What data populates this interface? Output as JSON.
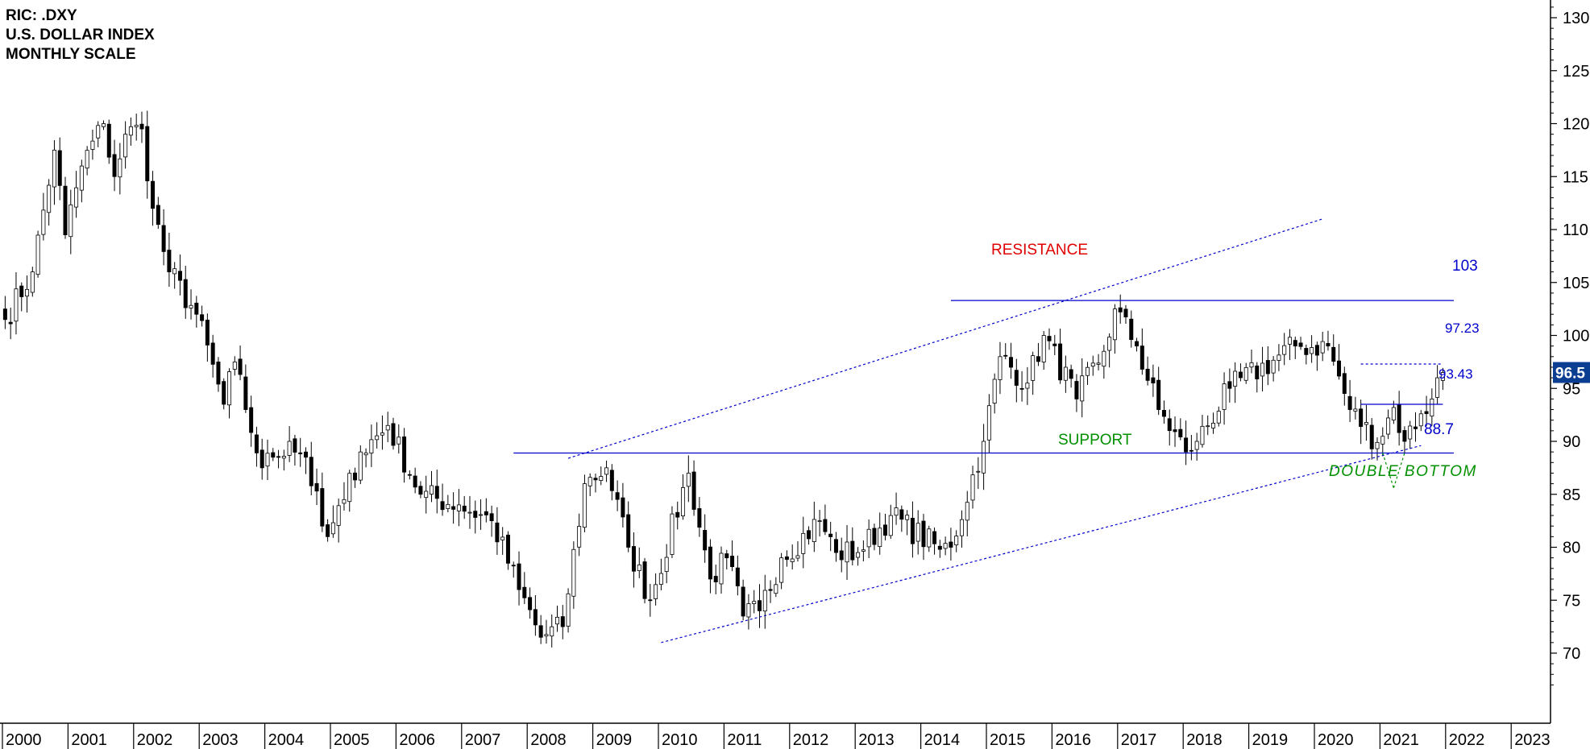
{
  "header": {
    "line1": "RIC: .DXY",
    "line2": "U.S. DOLLAR INDEX",
    "line3": "MONTHLY SCALE"
  },
  "chart_data": {
    "type": "candlestick",
    "frequency": "monthly",
    "ylim": [
      66,
      132
    ],
    "y_ticks": [
      70,
      75,
      80,
      85,
      90,
      95,
      100,
      105,
      110,
      115,
      120,
      125,
      130
    ],
    "x_ticks": [
      "2000",
      "2001",
      "2002",
      "2003",
      "2004",
      "2005",
      "2006",
      "2007",
      "2008",
      "2009",
      "2010",
      "2011",
      "2012",
      "2013",
      "2014",
      "2015",
      "2016",
      "2017",
      "2018",
      "2019",
      "2020",
      "2021",
      "2022",
      "2023"
    ],
    "x_range": [
      "2000-01",
      "2023-06"
    ],
    "last_price": "96.5",
    "anchors": [
      [
        "2000-01",
        101.5
      ],
      [
        "2000-06",
        106
      ],
      [
        "2000-10",
        117.5
      ],
      [
        "2000-12",
        109.5
      ],
      [
        "2001-03",
        116
      ],
      [
        "2001-07",
        120
      ],
      [
        "2001-09",
        115
      ],
      [
        "2001-11",
        119
      ],
      [
        "2002-02",
        119.5
      ],
      [
        "2002-04",
        112
      ],
      [
        "2002-07",
        106
      ],
      [
        "2002-12",
        102
      ],
      [
        "2003-05",
        93.5
      ],
      [
        "2003-07",
        97.5
      ],
      [
        "2003-09",
        93
      ],
      [
        "2003-12",
        87.5
      ],
      [
        "2004-02",
        88.5
      ],
      [
        "2004-05",
        90
      ],
      [
        "2004-08",
        88.5
      ],
      [
        "2004-11",
        82
      ],
      [
        "2004-12",
        81
      ],
      [
        "2005-03",
        84.5
      ],
      [
        "2005-06",
        89
      ],
      [
        "2005-11",
        91.5
      ],
      [
        "2006-05",
        85
      ],
      [
        "2006-12",
        84
      ],
      [
        "2007-06",
        82.5
      ],
      [
        "2007-11",
        76
      ],
      [
        "2008-03",
        71.5
      ],
      [
        "2008-07",
        72.5
      ],
      [
        "2008-11",
        86
      ],
      [
        "2009-03",
        87.5
      ],
      [
        "2009-07",
        80
      ],
      [
        "2009-11",
        75
      ],
      [
        "2010-06",
        87
      ],
      [
        "2010-10",
        77
      ],
      [
        "2011-01",
        79
      ],
      [
        "2011-04",
        73.5
      ],
      [
        "2011-07",
        74
      ],
      [
        "2011-11",
        79
      ],
      [
        "2012-06",
        82.5
      ],
      [
        "2012-09",
        79.5
      ],
      [
        "2013-01",
        79.5
      ],
      [
        "2013-07",
        83
      ],
      [
        "2014-04",
        79.8
      ],
      [
        "2014-06",
        80
      ],
      [
        "2014-12",
        90
      ],
      [
        "2015-03",
        98
      ],
      [
        "2015-08",
        95.5
      ],
      [
        "2015-11",
        100
      ],
      [
        "2016-05",
        94
      ],
      [
        "2016-10",
        98.5
      ],
      [
        "2016-12",
        102.5
      ],
      [
        "2017-04",
        99
      ],
      [
        "2017-08",
        93
      ],
      [
        "2018-01",
        89
      ],
      [
        "2018-03",
        90
      ],
      [
        "2018-09",
        95
      ],
      [
        "2019-09",
        99
      ],
      [
        "2020-03",
        99
      ],
      [
        "2020-07",
        93
      ],
      [
        "2020-12",
        89.9
      ],
      [
        "2021-03",
        93.2
      ],
      [
        "2021-05",
        90
      ],
      [
        "2021-08",
        92.6
      ],
      [
        "2021-10",
        94
      ],
      [
        "2021-11",
        96
      ],
      [
        "2021-12",
        96.5
      ]
    ],
    "annotations": {
      "resistance_label": "RESISTANCE",
      "support_label": "SUPPORT",
      "double_bottom_label": "DOUBLE BOTTOM",
      "resistance_value": "103",
      "level_97": "97.23",
      "level_93": "93.43",
      "support_value": "88.7"
    },
    "lines": {
      "resistance": {
        "from": "2014-06",
        "to": "2022-02",
        "y": 103.3
      },
      "support": {
        "from": "2007-10",
        "to": "2022-02",
        "y": 88.9
      },
      "level_97_23": {
        "from": "2020-09",
        "to": "2021-12",
        "y": 97.3
      },
      "level_93_43": {
        "from": "2020-09",
        "to": "2021-12",
        "y": 93.5
      },
      "channel_upper": {
        "from": [
          "2008-08",
          88.4
        ],
        "to": [
          "2020-02",
          111
        ]
      },
      "channel_lower": {
        "from": [
          "2010-01",
          71
        ],
        "to": [
          "2021-08",
          89.6
        ]
      },
      "double_bottom_v": {
        "left": [
          "2021-01",
          88.9
        ],
        "bottom": [
          "2021-03",
          85.6
        ],
        "right": [
          "2021-05",
          88.9
        ]
      }
    },
    "colors": {
      "up_candle": "#ffffff",
      "down_candle": "#000000",
      "level_line": "#0000cc",
      "resistance_text": "#e00000",
      "support_text": "#009000",
      "price_badge": "#0b3d91"
    }
  }
}
